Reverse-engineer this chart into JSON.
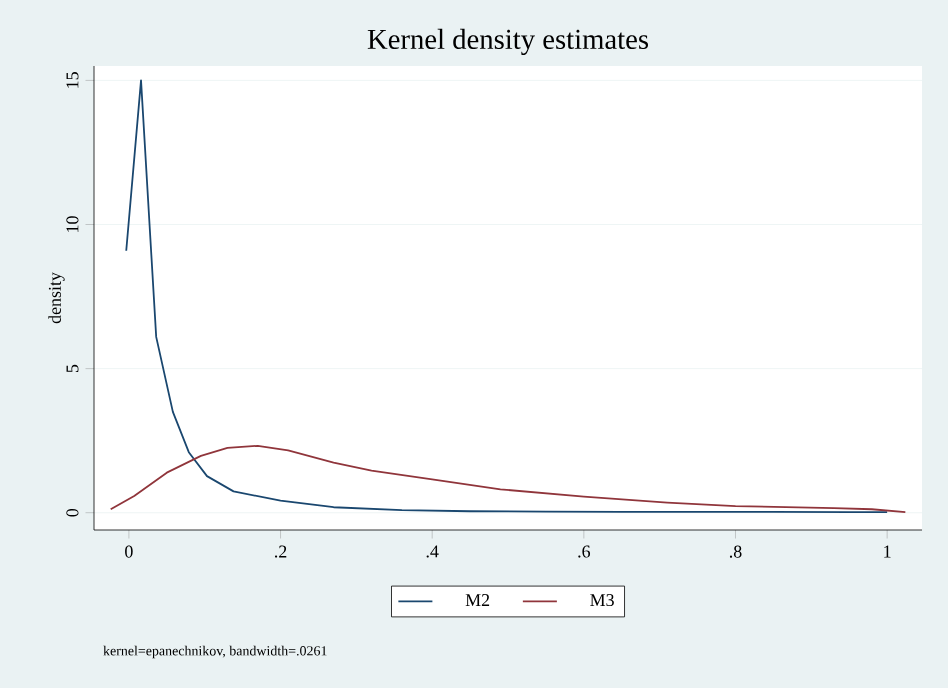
{
  "chart_data": {
    "type": "line",
    "title": "Kernel density estimates",
    "ylabel": "density",
    "annotations": [
      "kernel=epanechnikov, bandwidth=.0261"
    ],
    "xlim": [
      -0.046,
      1.046
    ],
    "ylim": [
      -0.6,
      15.5
    ],
    "xticks": [
      0,
      {
        "value": 0.2,
        "label": ".2"
      },
      {
        "value": 0.4,
        "label": ".4"
      },
      {
        "value": 0.6,
        "label": ".6"
      },
      {
        "value": 0.8,
        "label": ".8"
      },
      1
    ],
    "yticks": [
      0,
      5,
      10,
      15
    ],
    "grid": "y",
    "legend": "bottom",
    "series": [
      {
        "name": "M2",
        "color": "#1a476f",
        "x": [
          -0.0035,
          0.016,
          0.036,
          0.058,
          0.079,
          0.103,
          0.138,
          0.2,
          0.27,
          0.36,
          0.45,
          0.55,
          0.65,
          0.75,
          0.85,
          0.95,
          1.0
        ],
        "values": [
          9.09,
          15.0,
          6.1,
          3.5,
          2.1,
          1.27,
          0.74,
          0.42,
          0.19,
          0.09,
          0.05,
          0.04,
          0.03,
          0.03,
          0.03,
          0.02,
          0.02
        ]
      },
      {
        "name": "M3",
        "color": "#90353b",
        "x": [
          -0.024,
          0.007,
          0.05,
          0.095,
          0.13,
          0.17,
          0.21,
          0.27,
          0.32,
          0.4,
          0.49,
          0.6,
          0.71,
          0.8,
          0.93,
          0.98,
          1.024
        ],
        "values": [
          0.12,
          0.58,
          1.39,
          1.97,
          2.25,
          2.32,
          2.16,
          1.74,
          1.46,
          1.16,
          0.81,
          0.56,
          0.35,
          0.23,
          0.16,
          0.12,
          0.02
        ]
      }
    ]
  }
}
